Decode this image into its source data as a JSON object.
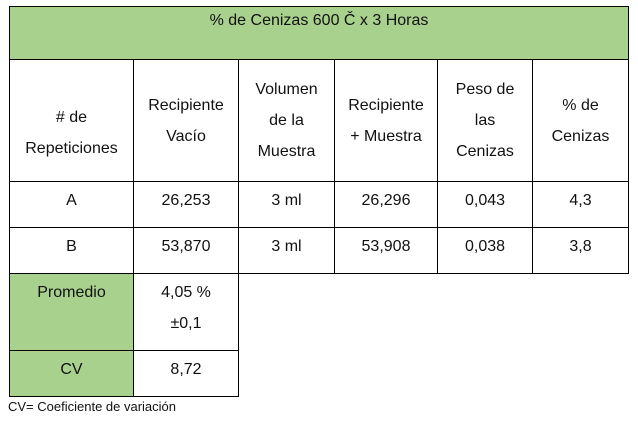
{
  "table": {
    "title": "% de Cenizas 600 Č x 3 Horas",
    "headers": [
      "# de\nRepeticiones",
      "Recipiente\nVacío",
      "Volumen\nde la\nMuestra",
      "Recipiente\n+ Muestra",
      "Peso de\nlas\nCenizas",
      "% de\nCenizas"
    ],
    "rows": [
      {
        "rep": "A",
        "vacio": "26,253",
        "volumen": "3 ml",
        "recipiente_muestra": "26,296",
        "peso": "0,043",
        "pct": "4,3"
      },
      {
        "rep": "B",
        "vacio": "53,870",
        "volumen": "3 ml",
        "recipiente_muestra": "53,908",
        "peso": "0,038",
        "pct": "3,8"
      }
    ],
    "summary": {
      "promedio_label": "Promedio",
      "promedio_value": "4,05 %\n±0,1",
      "cv_label": "CV",
      "cv_value": "8,72"
    }
  },
  "footnote": "CV= Coeficiente de variación",
  "colors": {
    "header_fill": "#a9d18e",
    "border": "#000000"
  }
}
